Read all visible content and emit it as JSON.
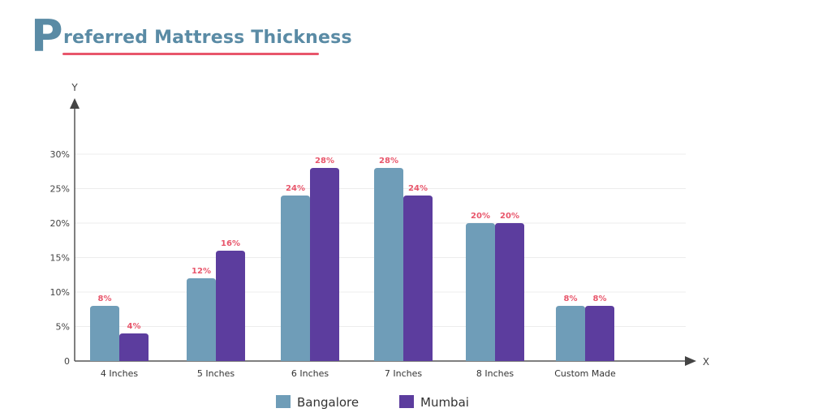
{
  "chart_data": {
    "type": "bar",
    "title_initial": "P",
    "title_rest": "referred Mattress Thickness",
    "title": "Preferred Mattress Thickness",
    "xlabel": "X",
    "ylabel": "Y",
    "categories": [
      "4 Inches",
      "5 Inches",
      "6 Inches",
      "7 Inches",
      "8 Inches",
      "Custom  Made"
    ],
    "yticks": [
      "0",
      "5%",
      "10%",
      "15%",
      "20%",
      "25%",
      "30%"
    ],
    "ylim": [
      0,
      30
    ],
    "grid": true,
    "legend_position": "bottom-center",
    "series": [
      {
        "name": "Bangalore",
        "values": [
          8,
          12,
          24,
          28,
          20,
          8
        ],
        "color": "#6f9db8"
      },
      {
        "name": "Mumbai",
        "values": [
          4,
          16,
          28,
          24,
          20,
          8
        ],
        "color": "#5c3d9e"
      }
    ],
    "label_color": "#e8566b"
  }
}
